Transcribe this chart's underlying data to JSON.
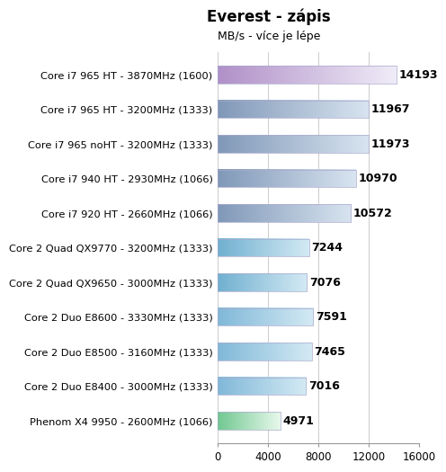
{
  "title": "Everest - zápis",
  "subtitle": "MB/s - více je lépe",
  "categories": [
    "Core i7 965 HT - 3870MHz (1600)",
    "Core i7 965 HT - 3200MHz (1333)",
    "Core i7 965 noHT - 3200MHz (1333)",
    "Core i7 940 HT - 2930MHz (1066)",
    "Core i7 920 HT - 2660MHz (1066)",
    "Core 2 Quad QX9770 - 3200MHz (1333)",
    "Core 2 Quad QX9650 - 3000MHz (1333)",
    "Core 2 Duo E8600 - 3330MHz (1333)",
    "Core 2 Duo E8500 - 3160MHz (1333)",
    "Core 2 Duo E8400 - 3000MHz (1333)",
    "Phenom X4 9950 - 2600MHz (1066)"
  ],
  "values": [
    14193,
    11967,
    11973,
    10970,
    10572,
    7244,
    7076,
    7591,
    7465,
    7016,
    4971
  ],
  "bar_color_dark": [
    "#b090c8",
    "#8098b8",
    "#8098b8",
    "#8098b8",
    "#8098b8",
    "#70b0d0",
    "#70b0d0",
    "#80b8d8",
    "#80b8d8",
    "#80b8d8",
    "#70c890"
  ],
  "bar_color_light": [
    "#f0ecf8",
    "#d8e4f0",
    "#d8e4f0",
    "#d8e4f0",
    "#d8e4f0",
    "#d4eaf4",
    "#d4eaf4",
    "#d4eaf4",
    "#d4eaf4",
    "#d4eaf4",
    "#e8f8ec"
  ],
  "xlim": [
    0,
    16000
  ],
  "xticks": [
    0,
    4000,
    8000,
    12000,
    16000
  ],
  "background_color": "#ffffff",
  "grid_color": "#cccccc",
  "value_fontsize": 9,
  "label_fontsize": 8.2,
  "title_fontsize": 12,
  "subtitle_fontsize": 9,
  "bar_height": 0.5
}
